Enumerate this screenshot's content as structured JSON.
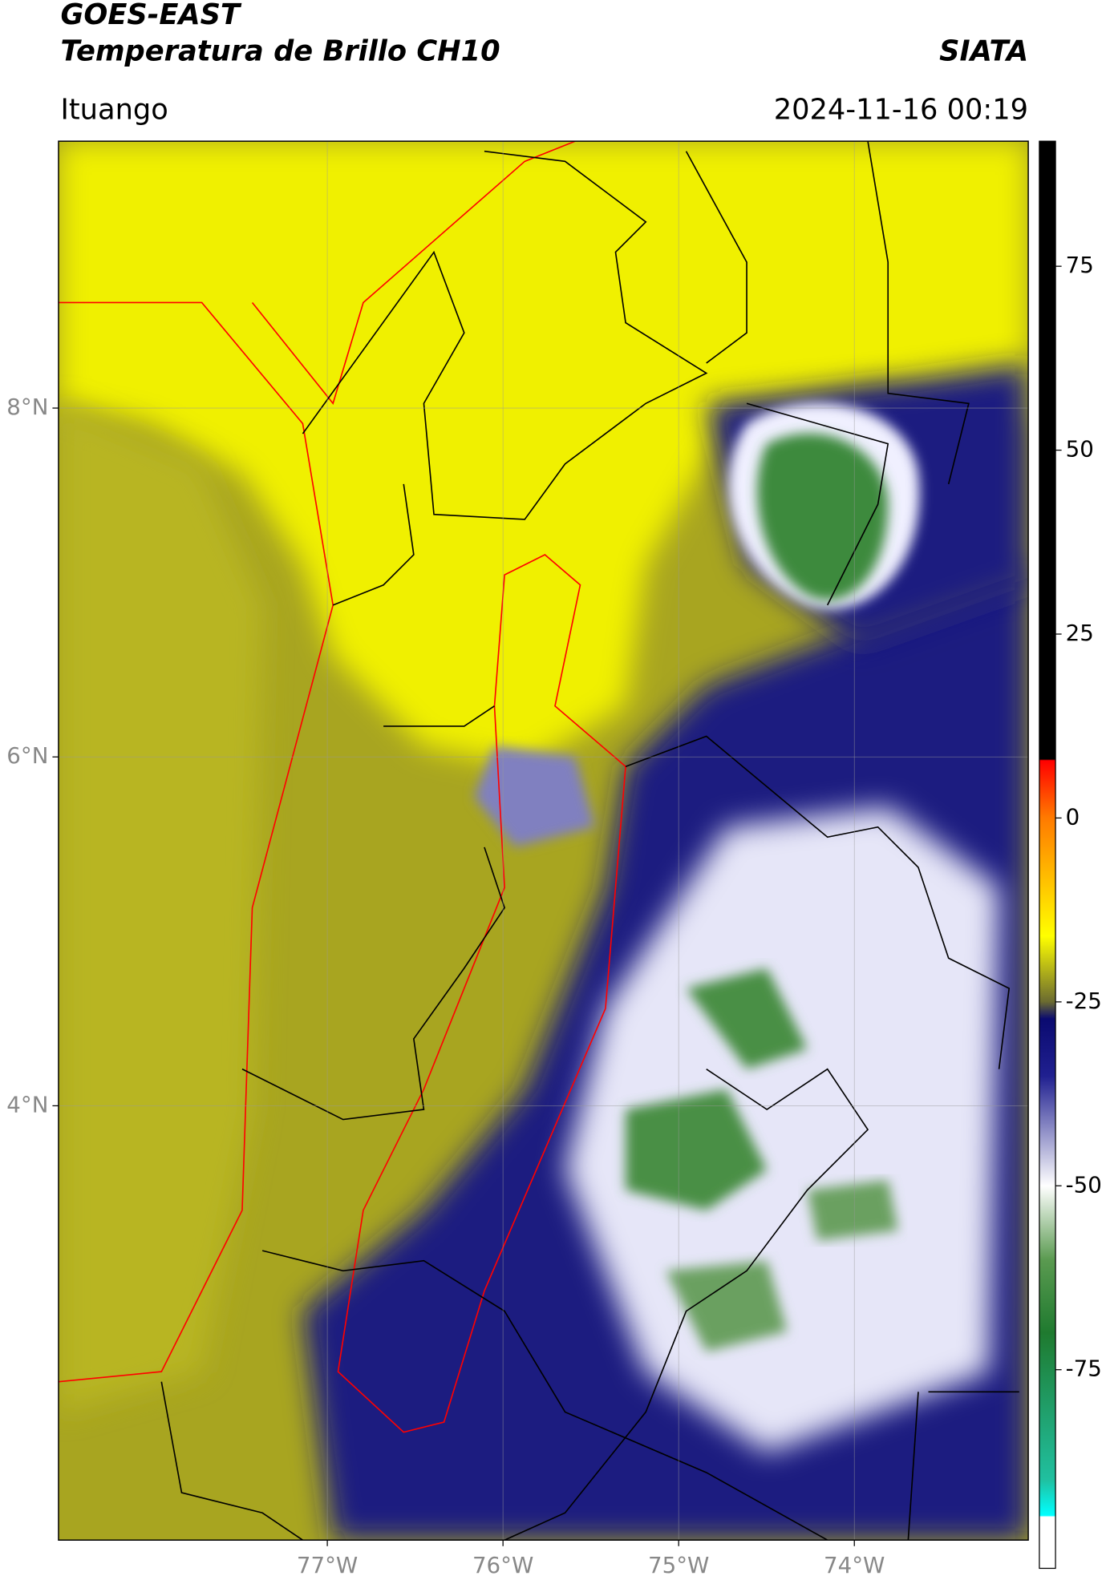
{
  "header": {
    "title": "GOES-EAST",
    "subtitle": "Temperatura de Brillo CH10",
    "source": "SIATA",
    "location": "Ituango",
    "datetime": "2024-11-16 00:19"
  },
  "map": {
    "xlim": [
      -78.53,
      -73.01
    ],
    "ylim": [
      1.51,
      9.53
    ],
    "xticks": [
      {
        "value": -77,
        "label": "77°W"
      },
      {
        "value": -76,
        "label": "76°W"
      },
      {
        "value": -75,
        "label": "75°W"
      },
      {
        "value": -74,
        "label": "74°W"
      }
    ],
    "yticks": [
      {
        "value": 8,
        "label": "8°N"
      },
      {
        "value": 6,
        "label": "6°N"
      },
      {
        "value": 4,
        "label": "4°N"
      }
    ],
    "grid": true
  },
  "colorbar": {
    "lim": [
      -102,
      92
    ],
    "ticks": [
      75,
      50,
      25,
      0,
      -25,
      -50,
      -75
    ]
  }
}
